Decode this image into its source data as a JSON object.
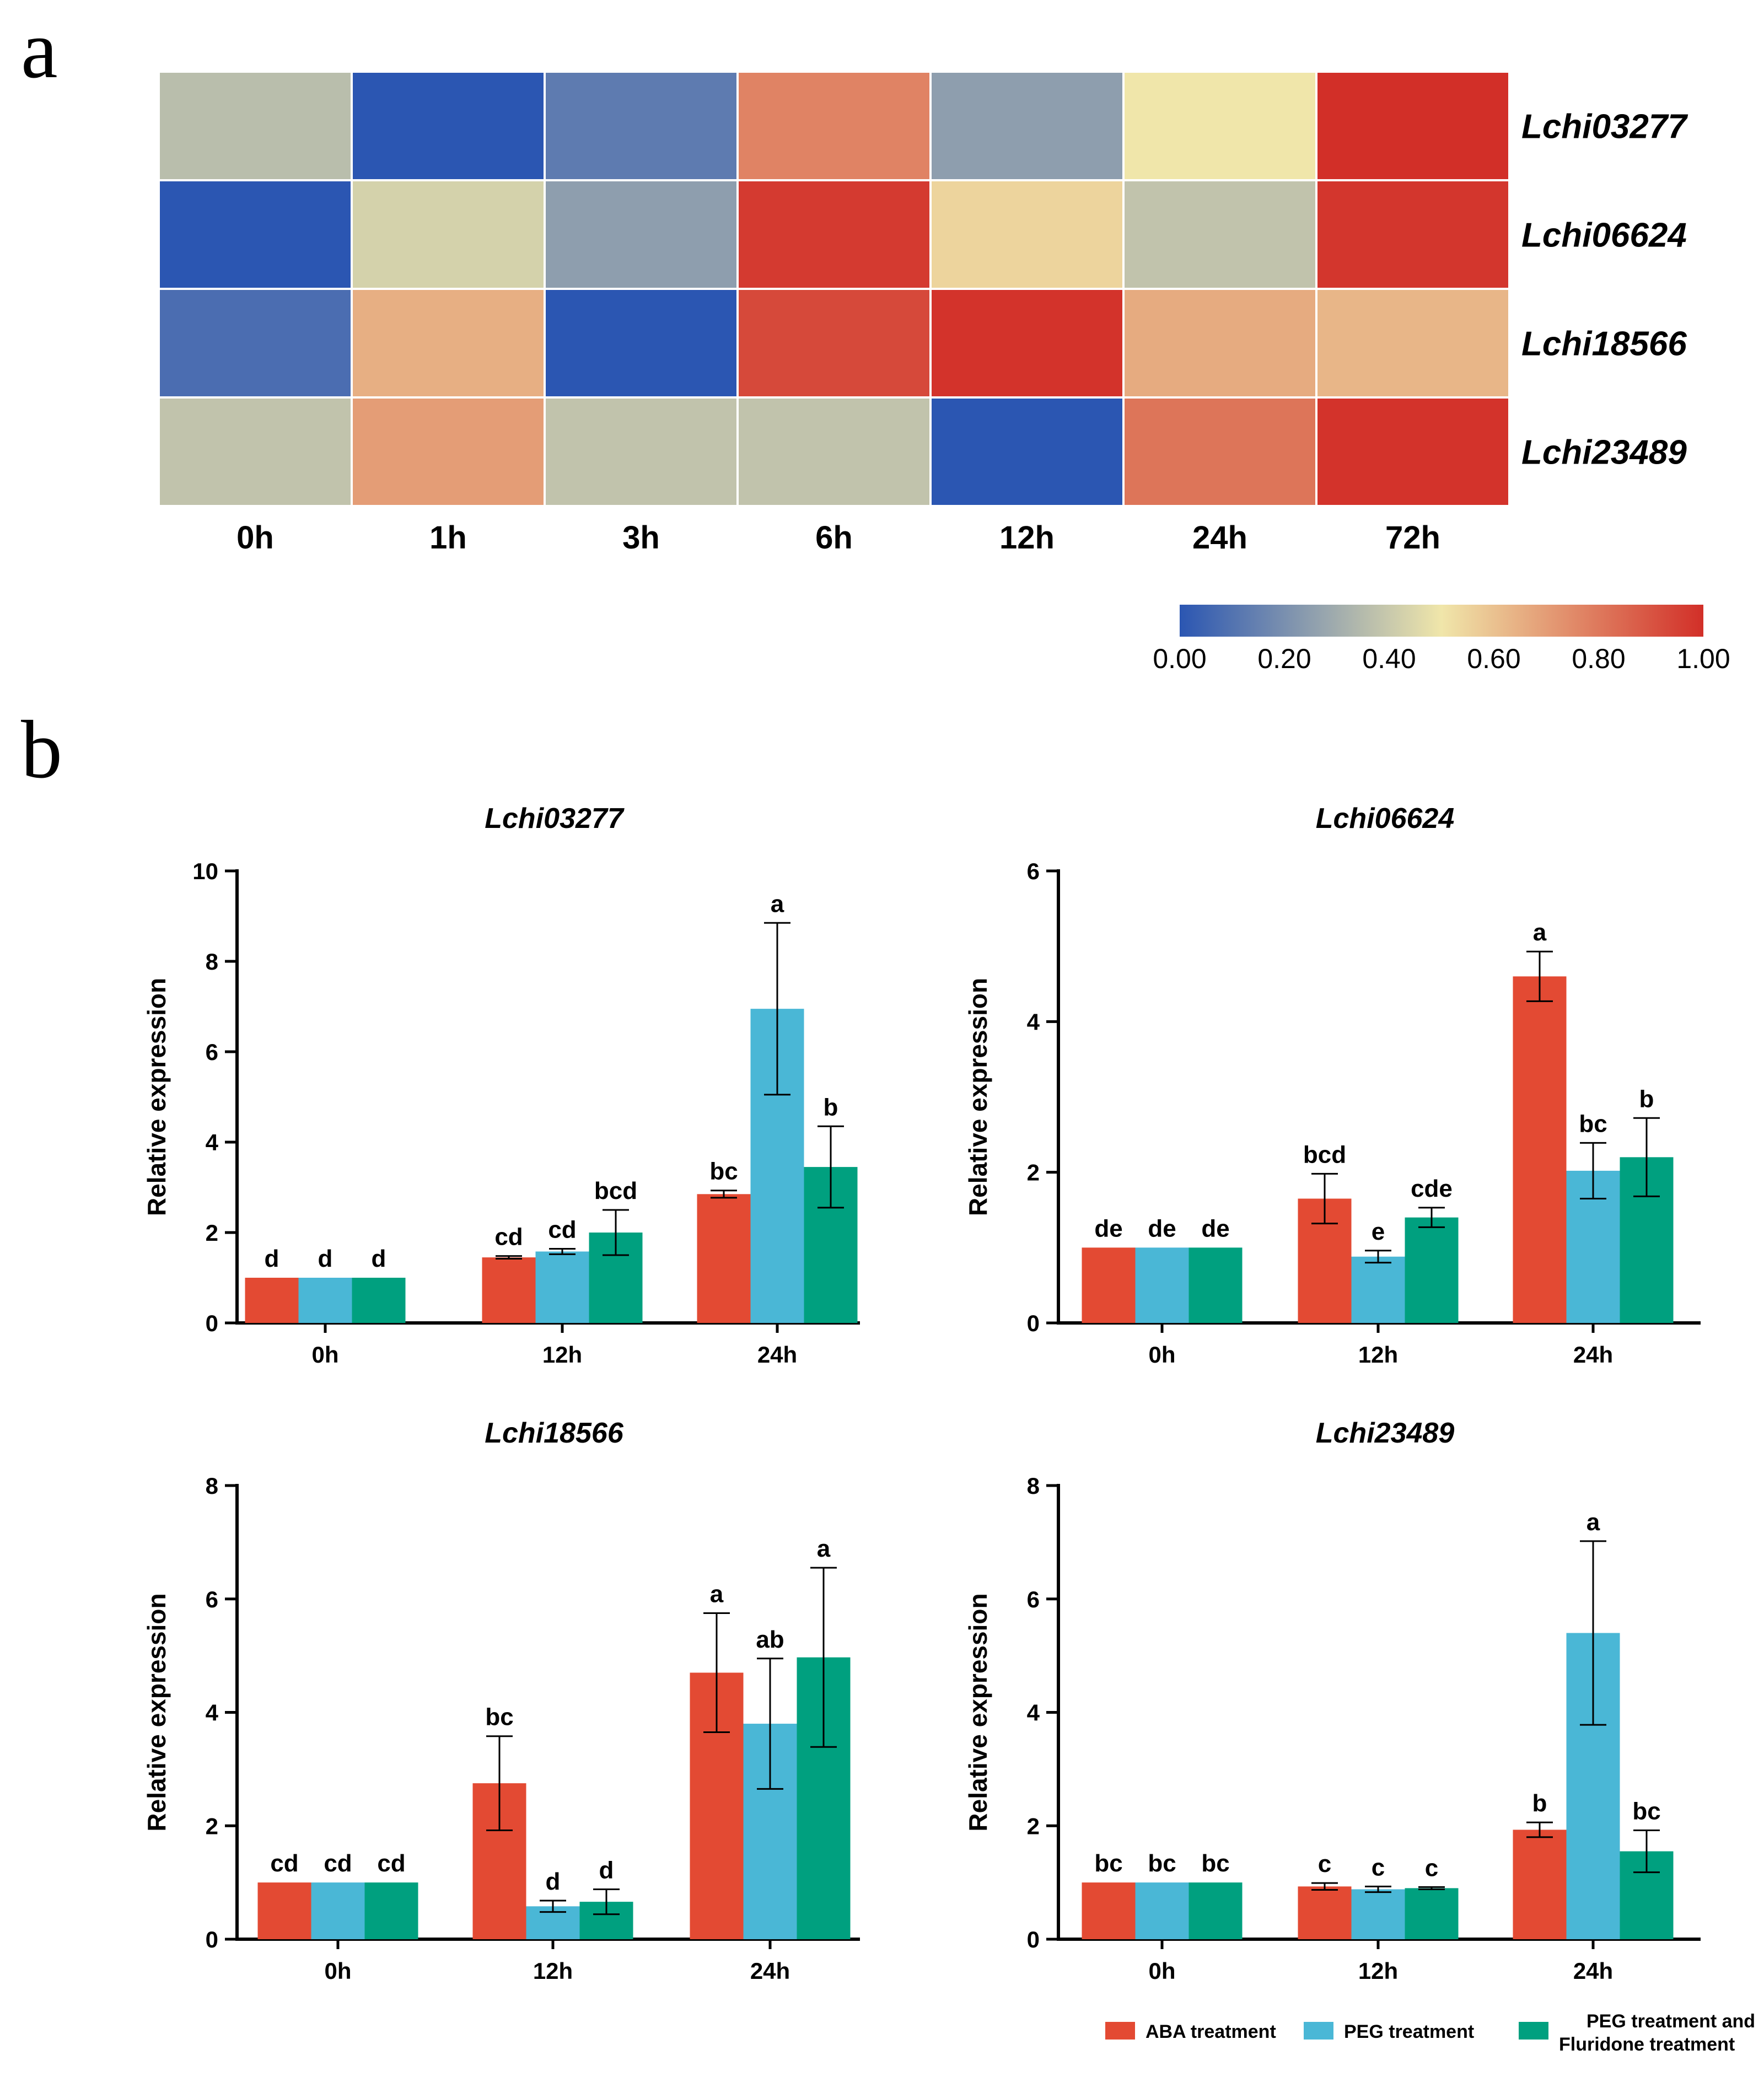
{
  "panel_labels": {
    "a": "a",
    "b": "b"
  },
  "colors": {
    "aba": "#e34a33",
    "peg": "#4ab7d6",
    "peg_fluridone": "#00a07f",
    "scale": [
      "#2b56b2",
      "#f0e6aa",
      "#d22f28"
    ]
  },
  "heatmap": {
    "columns": [
      "0h",
      "1h",
      "3h",
      "6h",
      "12h",
      "24h",
      "72h"
    ],
    "rows": [
      {
        "label": "Lchi03277",
        "values": [
          0.36,
          0.0,
          0.13,
          0.77,
          0.25,
          0.5,
          1.0
        ]
      },
      {
        "label": "Lchi06624",
        "values": [
          0.0,
          0.43,
          0.25,
          0.97,
          0.55,
          0.38,
          0.98
        ]
      },
      {
        "label": "Lchi18566",
        "values": [
          0.08,
          0.65,
          0.0,
          0.93,
          0.99,
          0.66,
          0.63
        ]
      },
      {
        "label": "Lchi23489",
        "values": [
          0.38,
          0.7,
          0.38,
          0.38,
          0.0,
          0.81,
          0.99
        ]
      }
    ],
    "scale": {
      "min": 0,
      "max": 1,
      "tick_labels": [
        "0.00",
        "0.20",
        "0.40",
        "0.60",
        "0.80",
        "1.00"
      ]
    }
  },
  "chart_data": [
    {
      "type": "bar",
      "title": "Lchi03277",
      "ylabel": "Relative expression",
      "categories": [
        "0h",
        "12h",
        "24h"
      ],
      "ylim": [
        0,
        10
      ],
      "yticks": [
        0,
        2,
        4,
        6,
        8,
        10
      ],
      "series": [
        {
          "name": "ABA treatment",
          "values": [
            1.0,
            1.45,
            2.85
          ],
          "errors": [
            0,
            0.03,
            0.08
          ],
          "labels": [
            "d",
            "cd",
            "bc"
          ]
        },
        {
          "name": "PEG treatment",
          "values": [
            1.0,
            1.58,
            6.95
          ],
          "errors": [
            0,
            0.06,
            1.9
          ],
          "labels": [
            "d",
            "cd",
            "a"
          ]
        },
        {
          "name": "PEG treatment and Fluridone treatment",
          "values": [
            1.0,
            2.0,
            3.45
          ],
          "errors": [
            0,
            0.5,
            0.9
          ],
          "labels": [
            "d",
            "bcd",
            "b"
          ]
        }
      ]
    },
    {
      "type": "bar",
      "title": "Lchi06624",
      "ylabel": "Relative expression",
      "categories": [
        "0h",
        "12h",
        "24h"
      ],
      "ylim": [
        0,
        6
      ],
      "yticks": [
        0,
        2,
        4,
        6
      ],
      "series": [
        {
          "name": "ABA treatment",
          "values": [
            1.0,
            1.65,
            4.6
          ],
          "errors": [
            0,
            0.33,
            0.33
          ],
          "labels": [
            "de",
            "bcd",
            "a"
          ]
        },
        {
          "name": "PEG treatment",
          "values": [
            1.0,
            0.88,
            2.02
          ],
          "errors": [
            0,
            0.08,
            0.37
          ],
          "labels": [
            "de",
            "e",
            "bc"
          ]
        },
        {
          "name": "PEG treatment and Fluridone treatment",
          "values": [
            1.0,
            1.4,
            2.2
          ],
          "errors": [
            0,
            0.13,
            0.52
          ],
          "labels": [
            "de",
            "cde",
            "b"
          ]
        }
      ]
    },
    {
      "type": "bar",
      "title": "Lchi18566",
      "ylabel": "Relative expression",
      "categories": [
        "0h",
        "12h",
        "24h"
      ],
      "ylim": [
        0,
        8
      ],
      "yticks": [
        0,
        2,
        4,
        6,
        8
      ],
      "series": [
        {
          "name": "ABA treatment",
          "values": [
            1.0,
            2.75,
            4.7
          ],
          "errors": [
            0,
            0.83,
            1.05
          ],
          "labels": [
            "cd",
            "bc",
            "a"
          ]
        },
        {
          "name": "PEG treatment",
          "values": [
            1.0,
            0.58,
            3.8
          ],
          "errors": [
            0,
            0.1,
            1.15
          ],
          "labels": [
            "cd",
            "d",
            "ab"
          ]
        },
        {
          "name": "PEG treatment and Fluridone treatment",
          "values": [
            1.0,
            0.66,
            4.97
          ],
          "errors": [
            0,
            0.22,
            1.58
          ],
          "labels": [
            "cd",
            "d",
            "a"
          ]
        }
      ]
    },
    {
      "type": "bar",
      "title": "Lchi23489",
      "ylabel": "Relative expression",
      "categories": [
        "0h",
        "12h",
        "24h"
      ],
      "ylim": [
        0,
        8
      ],
      "yticks": [
        0,
        2,
        4,
        6,
        8
      ],
      "series": [
        {
          "name": "ABA treatment",
          "values": [
            1.0,
            0.93,
            1.93
          ],
          "errors": [
            0,
            0.06,
            0.13
          ],
          "labels": [
            "bc",
            "c",
            "b"
          ]
        },
        {
          "name": "PEG treatment",
          "values": [
            1.0,
            0.88,
            5.4
          ],
          "errors": [
            0,
            0.05,
            1.62
          ],
          "labels": [
            "bc",
            "c",
            "a"
          ]
        },
        {
          "name": "PEG treatment and Fluridone treatment",
          "values": [
            1.0,
            0.9,
            1.55
          ],
          "errors": [
            0,
            0.02,
            0.37
          ],
          "labels": [
            "bc",
            "c",
            "bc"
          ]
        }
      ]
    }
  ],
  "legend": {
    "items": [
      {
        "lines": [
          "ABA treatment"
        ]
      },
      {
        "lines": [
          "PEG treatment"
        ]
      },
      {
        "lines": [
          "PEG treatment and",
          "Fluridone treatment"
        ]
      }
    ]
  }
}
